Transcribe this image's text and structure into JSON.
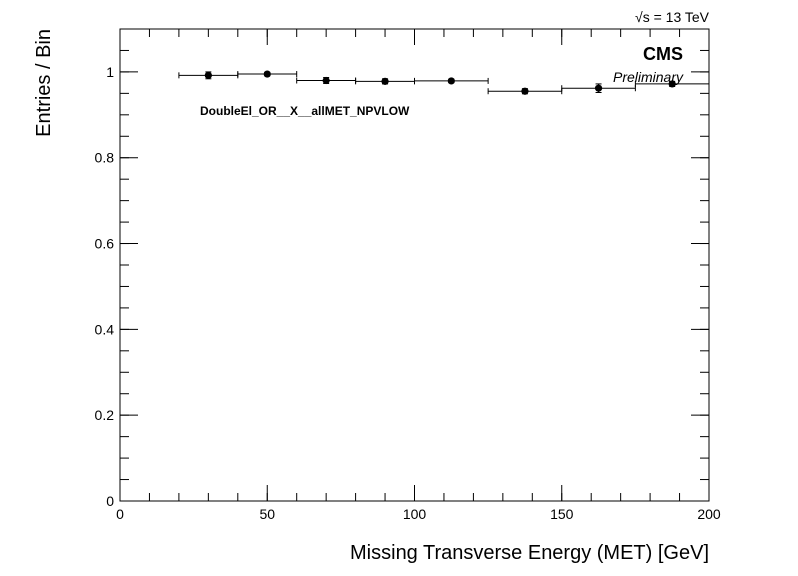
{
  "chart_data": {
    "type": "scatter",
    "energy_label": "√s = 13 TeV",
    "experiment": "CMS",
    "status": "Preliminary",
    "annotation": "DoubleEl_OR__X__allMET_NPVLOW",
    "xlabel": "Missing Transverse Energy (MET) [GeV]",
    "ylabel": "Entries / Bin",
    "xlim": [
      0,
      200
    ],
    "ylim": [
      0,
      1.1
    ],
    "x_ticks": [
      {
        "value": 0,
        "label": "0"
      },
      {
        "value": 50,
        "label": "50"
      },
      {
        "value": 100,
        "label": "100"
      },
      {
        "value": 150,
        "label": "150"
      },
      {
        "value": 200,
        "label": "200"
      }
    ],
    "y_ticks": [
      {
        "value": 0,
        "label": "0"
      },
      {
        "value": 0.2,
        "label": "0.2"
      },
      {
        "value": 0.4,
        "label": "0.4"
      },
      {
        "value": 0.6,
        "label": "0.6"
      },
      {
        "value": 0.8,
        "label": "0.8"
      },
      {
        "value": 1.0,
        "label": "1"
      }
    ],
    "series": [
      {
        "points": [
          {
            "x": 30,
            "x_low": 20,
            "x_high": 40,
            "y": 0.992,
            "y_err": 0.008
          },
          {
            "x": 50,
            "x_low": 40,
            "x_high": 60,
            "y": 0.995,
            "y_err": 0.004
          },
          {
            "x": 70,
            "x_low": 60,
            "x_high": 80,
            "y": 0.98,
            "y_err": 0.007
          },
          {
            "x": 90,
            "x_low": 80,
            "x_high": 100,
            "y": 0.978,
            "y_err": 0.006
          },
          {
            "x": 112.5,
            "x_low": 100,
            "x_high": 125,
            "y": 0.979,
            "y_err": 0.004
          },
          {
            "x": 137.5,
            "x_low": 125,
            "x_high": 150,
            "y": 0.955,
            "y_err": 0.006
          },
          {
            "x": 162.5,
            "x_low": 150,
            "x_high": 175,
            "y": 0.962,
            "y_err": 0.01
          },
          {
            "x": 187.5,
            "x_low": 175,
            "x_high": 200,
            "y": 0.972,
            "y_err": 0.006
          }
        ]
      }
    ],
    "grid": false,
    "legend": "none",
    "marker_color": "#000000"
  }
}
